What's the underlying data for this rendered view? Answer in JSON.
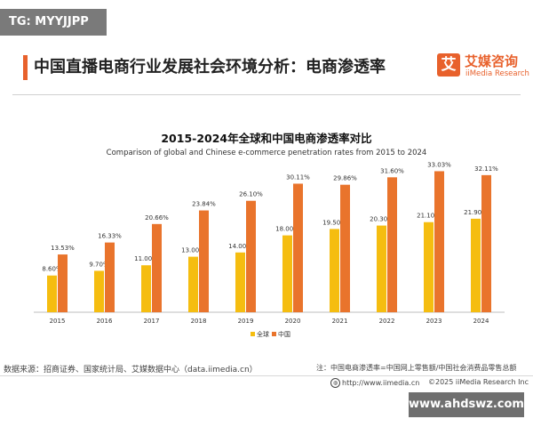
{
  "watermark_top": "TG: MYYJJPP",
  "page_title": "中国直播电商行业发展社会环境分析：电商渗透率",
  "logo": {
    "mark": "艾",
    "cn": "艾媒咨询",
    "en": "iiMedia Research"
  },
  "source_text": "数据来源：招商证券、国家统计局、艾媒数据中心（data.iimedia.cn）",
  "note_text": "注：中国电商渗透率=中国网上零售额/中国社会消费品零售总额",
  "footer": {
    "url": "http://www.iimedia.cn",
    "copyright": "©2025  iiMedia Research  Inc"
  },
  "watermark_bottom": "www.ahdswz.com",
  "colors": {
    "global": "#f5bd10",
    "china": "#e9742c",
    "accent": "#e8612c"
  },
  "chart_data": {
    "type": "bar",
    "title": "2015-2024年全球和中国电商渗透率对比",
    "subtitle": "Comparison of global and Chinese e-commerce penetration rates from 2015 to 2024",
    "categories": [
      "2015",
      "2016",
      "2017",
      "2018",
      "2019",
      "2020",
      "2021",
      "2022",
      "2023",
      "2024"
    ],
    "series": [
      {
        "name": "全球",
        "values": [
          8.6,
          9.7,
          11.0,
          13.0,
          14.0,
          18.0,
          19.5,
          20.3,
          21.1,
          21.9
        ],
        "labels": [
          "8.60%",
          "9.70%",
          "11.00%",
          "13.00%",
          "14.00%",
          "18.00%",
          "19.50%",
          "20.30%",
          "21.10%",
          "21.90%"
        ]
      },
      {
        "name": "中国",
        "values": [
          13.53,
          16.33,
          20.66,
          23.84,
          26.1,
          30.11,
          29.86,
          31.6,
          33.03,
          32.11
        ],
        "labels": [
          "13.53%",
          "16.33%",
          "20.66%",
          "23.84%",
          "26.10%",
          "30.11%",
          "29.86%",
          "31.60%",
          "33.03%",
          "32.11%"
        ]
      }
    ],
    "ylim": [
      0,
      35
    ],
    "grid": false,
    "legend": "bottom-center"
  }
}
